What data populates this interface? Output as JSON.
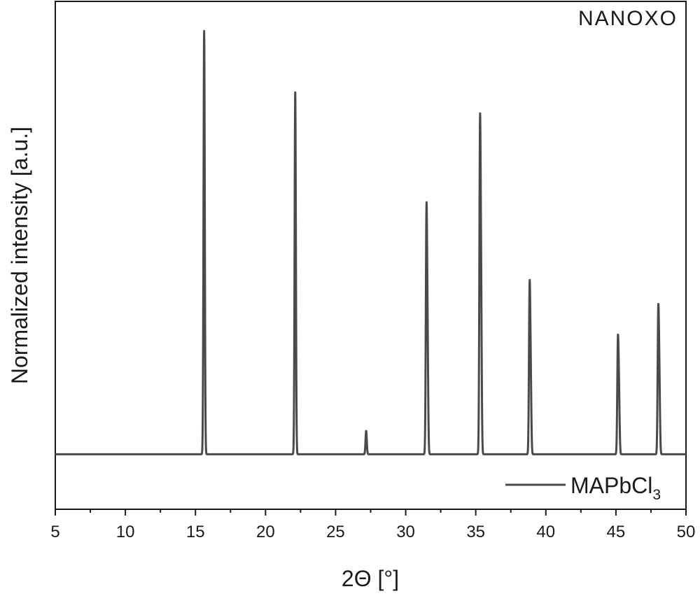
{
  "logo": {
    "text": "NANOXO"
  },
  "chart_data": {
    "type": "line",
    "title": "",
    "xlabel": "2Θ [°]",
    "ylabel": "Normalized intensity [a.u.]",
    "xlim": [
      5,
      50
    ],
    "ylim": [
      -0.13,
      1.07
    ],
    "x_ticks": [
      5,
      10,
      15,
      20,
      25,
      30,
      35,
      40,
      45,
      50
    ],
    "y_ticks": [],
    "grid": false,
    "legend_position": "bottom-right",
    "series": [
      {
        "name": "MAPbCl",
        "name_subscript": "3",
        "color": "#4a4a4a",
        "baseline": 0.0,
        "peaks": [
          {
            "x": 15.62,
            "y": 1.0
          },
          {
            "x": 22.12,
            "y": 0.855
          },
          {
            "x": 27.18,
            "y": 0.055
          },
          {
            "x": 31.48,
            "y": 0.537
          },
          {
            "x": 31.56,
            "y": 0.24
          },
          {
            "x": 35.3,
            "y": 0.72
          },
          {
            "x": 35.38,
            "y": 0.345
          },
          {
            "x": 38.84,
            "y": 0.37
          },
          {
            "x": 38.92,
            "y": 0.17
          },
          {
            "x": 45.14,
            "y": 0.25
          },
          {
            "x": 45.22,
            "y": 0.13
          },
          {
            "x": 48.02,
            "y": 0.315
          },
          {
            "x": 48.1,
            "y": 0.16
          }
        ]
      }
    ]
  }
}
